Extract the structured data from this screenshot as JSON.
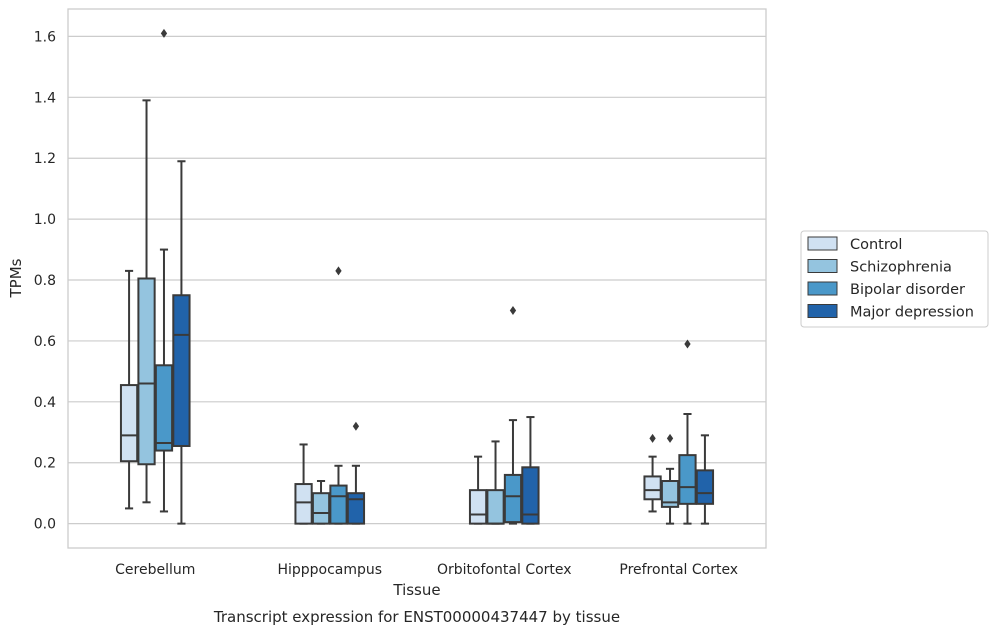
{
  "chart_data": {
    "type": "box",
    "title": "",
    "caption": "Transcript expression for ENST00000437447 by tissue",
    "xlabel": "Tissue",
    "ylabel": "TPMs",
    "ylim": [
      -0.08,
      1.69
    ],
    "yticks": [
      "0.0",
      "0.2",
      "0.4",
      "0.6",
      "0.8",
      "1.0",
      "1.2",
      "1.4",
      "1.6"
    ],
    "ytick_values": [
      0.0,
      0.2,
      0.4,
      0.6,
      0.8,
      1.0,
      1.2,
      1.4,
      1.6
    ],
    "grid": "horizontal",
    "legend_position": "right",
    "categories": [
      "Cerebellum",
      "Hipppocampus",
      "Orbitofontal Cortex",
      "Prefrontal Cortex"
    ],
    "series": [
      {
        "name": "Control",
        "color": "#d0e1f2",
        "boxes": [
          {
            "whislo": 0.05,
            "q1": 0.205,
            "med": 0.29,
            "q3": 0.455,
            "whishi": 0.83,
            "fliers": []
          },
          {
            "whislo": 0.0,
            "q1": 0.0,
            "med": 0.07,
            "q3": 0.13,
            "whishi": 0.26,
            "fliers": []
          },
          {
            "whislo": 0.0,
            "q1": 0.0,
            "med": 0.03,
            "q3": 0.11,
            "whishi": 0.22,
            "fliers": []
          },
          {
            "whislo": 0.04,
            "q1": 0.08,
            "med": 0.11,
            "q3": 0.155,
            "whishi": 0.22,
            "fliers": [
              0.28
            ]
          }
        ]
      },
      {
        "name": "Schizophrenia",
        "color": "#94c4df",
        "boxes": [
          {
            "whislo": 0.07,
            "q1": 0.195,
            "med": 0.46,
            "q3": 0.805,
            "whishi": 1.39,
            "fliers": []
          },
          {
            "whislo": 0.0,
            "q1": 0.0,
            "med": 0.035,
            "q3": 0.1,
            "whishi": 0.14,
            "fliers": []
          },
          {
            "whislo": 0.0,
            "q1": 0.0,
            "med": 0.0,
            "q3": 0.11,
            "whishi": 0.27,
            "fliers": []
          },
          {
            "whislo": 0.0,
            "q1": 0.055,
            "med": 0.07,
            "q3": 0.14,
            "whishi": 0.18,
            "fliers": [
              0.28
            ]
          }
        ]
      },
      {
        "name": "Bipolar disorder",
        "color": "#4a98c9",
        "boxes": [
          {
            "whislo": 0.04,
            "q1": 0.24,
            "med": 0.265,
            "q3": 0.52,
            "whishi": 0.9,
            "fliers": [
              1.61
            ]
          },
          {
            "whislo": 0.0,
            "q1": 0.0,
            "med": 0.09,
            "q3": 0.125,
            "whishi": 0.19,
            "fliers": [
              0.83
            ]
          },
          {
            "whislo": 0.0,
            "q1": 0.005,
            "med": 0.09,
            "q3": 0.16,
            "whishi": 0.34,
            "fliers": [
              0.7
            ]
          },
          {
            "whislo": 0.0,
            "q1": 0.065,
            "med": 0.12,
            "q3": 0.225,
            "whishi": 0.36,
            "fliers": [
              0.59
            ]
          }
        ]
      },
      {
        "name": "Major depression",
        "color": "#2163aa",
        "boxes": [
          {
            "whislo": 0.0,
            "q1": 0.255,
            "med": 0.62,
            "q3": 0.75,
            "whishi": 1.19,
            "fliers": []
          },
          {
            "whislo": 0.0,
            "q1": 0.0,
            "med": 0.08,
            "q3": 0.1,
            "whishi": 0.19,
            "fliers": [
              0.32
            ]
          },
          {
            "whislo": 0.0,
            "q1": 0.0,
            "med": 0.03,
            "q3": 0.185,
            "whishi": 0.35,
            "fliers": []
          },
          {
            "whislo": 0.0,
            "q1": 0.065,
            "med": 0.1,
            "q3": 0.175,
            "whishi": 0.29,
            "fliers": []
          }
        ]
      }
    ]
  }
}
